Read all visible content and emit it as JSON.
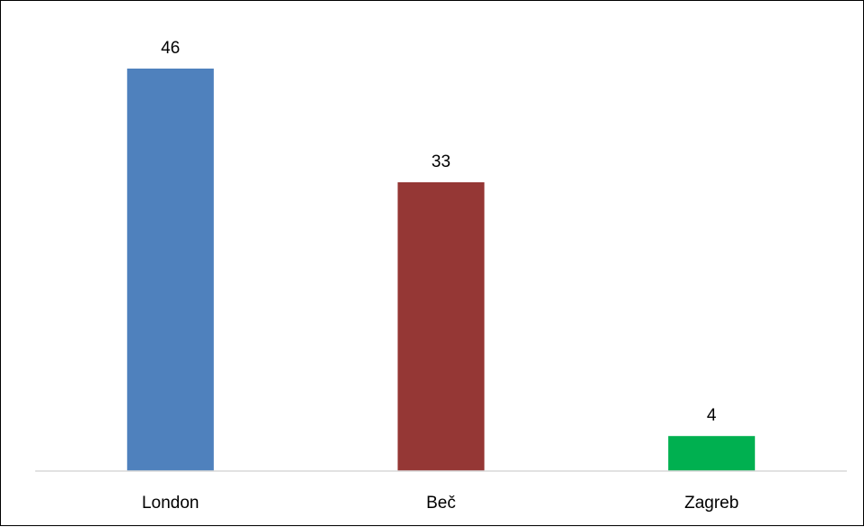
{
  "chart_data": {
    "type": "bar",
    "title": "",
    "xlabel": "",
    "ylabel": "",
    "categories": [
      "London",
      "Beč",
      "Zagreb"
    ],
    "values": [
      46,
      33,
      4
    ],
    "colors": [
      "#4f81bd",
      "#953735",
      "#00b050"
    ],
    "ylim": [
      0,
      46
    ],
    "grid": false,
    "legend": "none",
    "data_labels": true
  }
}
